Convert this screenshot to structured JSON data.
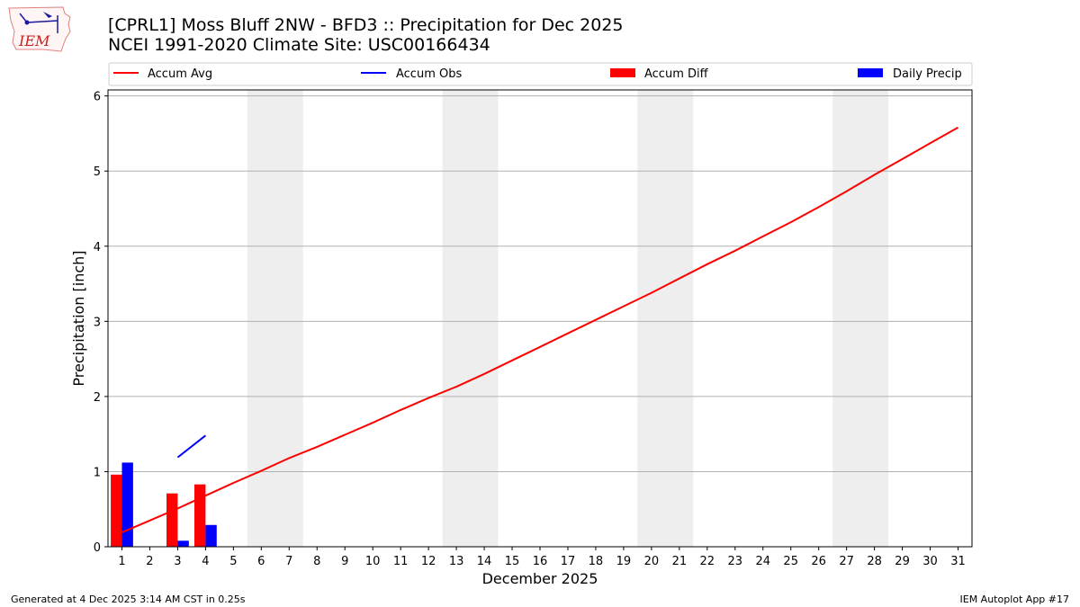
{
  "logo": {
    "text": "IEM",
    "icon": "iem-logo-icon"
  },
  "header": {
    "title_line1": "[CPRL1] Moss Bluff 2NW - BFD3 :: Precipitation for Dec 2025",
    "title_line2": "NCEI 1991-2020 Climate Site: USC00166434"
  },
  "footer": {
    "left": "Generated at 4 Dec 2025 3:14 AM CST in 0.25s",
    "right": "IEM Autoplot App #17"
  },
  "colors": {
    "accum_avg": "#ff0000",
    "accum_obs": "#0000ff",
    "accum_diff": "#ff0000",
    "daily_precip": "#0000ff",
    "weekend_shade": "#eeeeee",
    "grid": "#b0b0b0"
  },
  "chart_data": {
    "type": "bar",
    "title": "[CPRL1] Moss Bluff 2NW - BFD3 :: Precipitation for Dec 2025",
    "xlabel": "December 2025",
    "ylabel": "Precipitation [inch]",
    "xlim": [
      0.5,
      31.5
    ],
    "ylim": [
      0,
      6.08
    ],
    "yticks": [
      0,
      1,
      2,
      3,
      4,
      5,
      6
    ],
    "xticks": [
      1,
      2,
      3,
      4,
      5,
      6,
      7,
      8,
      9,
      10,
      11,
      12,
      13,
      14,
      15,
      16,
      17,
      18,
      19,
      20,
      21,
      22,
      23,
      24,
      25,
      26,
      27,
      28,
      29,
      30,
      31
    ],
    "grid": "horizontal",
    "legend_position": "top",
    "weekend_shading": [
      [
        6,
        7
      ],
      [
        13,
        14
      ],
      [
        20,
        21
      ],
      [
        27,
        28
      ]
    ],
    "legend": [
      "Accum Avg",
      "Accum Obs",
      "Accum Diff",
      "Daily Precip"
    ],
    "series": [
      {
        "name": "Accum Avg",
        "kind": "line",
        "x": [
          1,
          2,
          3,
          4,
          5,
          6,
          7,
          8,
          9,
          10,
          11,
          12,
          13,
          14,
          15,
          16,
          17,
          18,
          19,
          20,
          21,
          22,
          23,
          24,
          25,
          26,
          27,
          28,
          29,
          30,
          31
        ],
        "values": [
          0.19,
          0.35,
          0.51,
          0.68,
          0.85,
          1.01,
          1.18,
          1.33,
          1.49,
          1.65,
          1.82,
          1.98,
          2.13,
          2.3,
          2.48,
          2.66,
          2.84,
          3.02,
          3.2,
          3.38,
          3.57,
          3.76,
          3.94,
          4.13,
          4.32,
          4.52,
          4.73,
          4.95,
          5.16,
          5.37,
          5.58
        ]
      },
      {
        "name": "Accum Obs",
        "kind": "line",
        "x": [
          3,
          4
        ],
        "values": [
          1.19,
          1.48
        ]
      },
      {
        "name": "Accum Diff",
        "kind": "bar",
        "x": [
          1,
          2,
          3,
          4
        ],
        "values": [
          0.96,
          0,
          0.71,
          0.83
        ]
      },
      {
        "name": "Daily Precip",
        "kind": "bar",
        "x": [
          1,
          2,
          3,
          4
        ],
        "values": [
          1.12,
          0,
          0.08,
          0.29
        ]
      }
    ]
  }
}
